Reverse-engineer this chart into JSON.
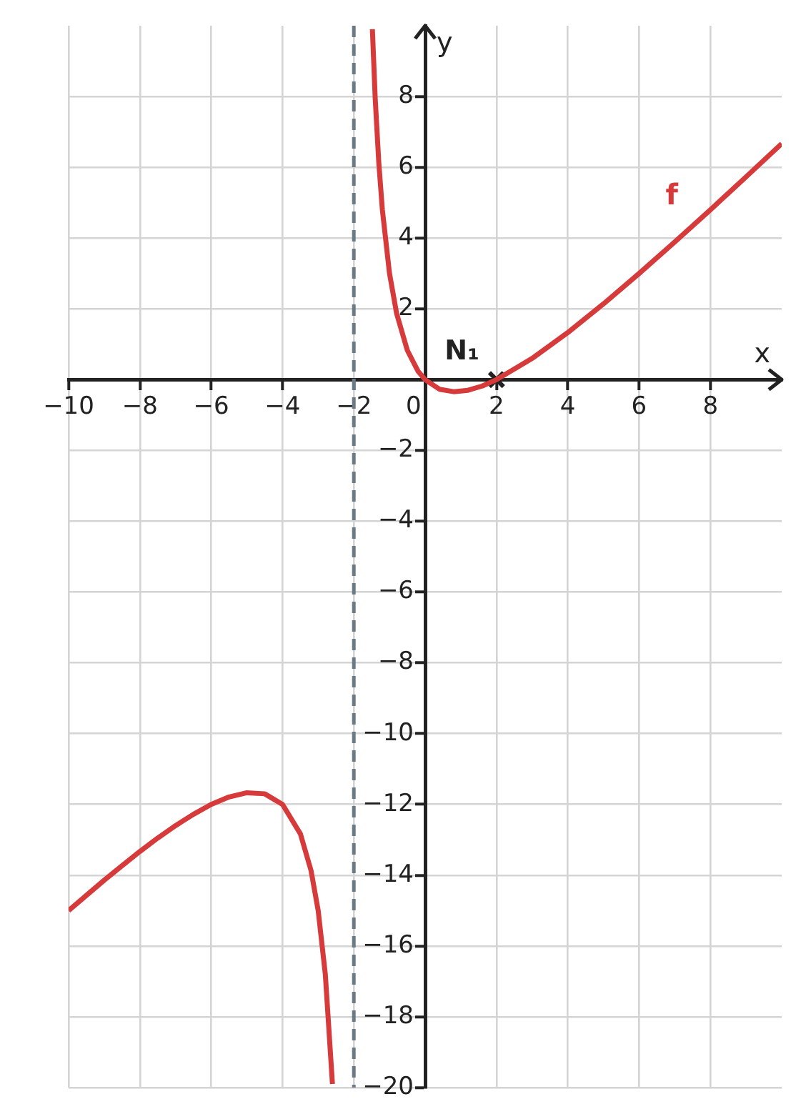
{
  "chart_data": {
    "type": "line",
    "xlabel": "x",
    "ylabel": "y",
    "xlim": [
      -10,
      10
    ],
    "ylim": [
      -20,
      10
    ],
    "xticks": [
      {
        "value": -10,
        "label": "−10"
      },
      {
        "value": -8,
        "label": "−8"
      },
      {
        "value": -6,
        "label": "−6"
      },
      {
        "value": -4,
        "label": "−4"
      },
      {
        "value": -2,
        "label": "−2"
      },
      0,
      2,
      4,
      6,
      8
    ],
    "yticks": [
      {
        "value": -20,
        "label": "−20"
      },
      {
        "value": -18,
        "label": "−18"
      },
      {
        "value": -16,
        "label": "−16"
      },
      {
        "value": -14,
        "label": "−14"
      },
      {
        "value": -12,
        "label": "−12"
      },
      {
        "value": -10,
        "label": "−10"
      },
      {
        "value": -8,
        "label": "−8"
      },
      {
        "value": -6,
        "label": "−6"
      },
      {
        "value": -4,
        "label": "−4"
      },
      {
        "value": -2,
        "label": "−2"
      },
      {
        "value": 0,
        "label": null
      },
      2,
      4,
      6,
      8
    ],
    "grid": true,
    "legend": false,
    "marker": "none",
    "series": [
      {
        "name": "f",
        "color": "#d63a3a",
        "x": [
          -10,
          -9.5,
          -9,
          -8.5,
          -8,
          -7.5,
          -7,
          -6.5,
          -6,
          -5.5,
          -5,
          -4.5,
          -4,
          -3.5,
          -3.2,
          -3,
          -2.8,
          -2.6,
          -2,
          -1.48,
          -1.4,
          -1.3,
          -1.2,
          -1,
          -0.8,
          -0.5,
          -0.2,
          0,
          0.4,
          0.8,
          1.2,
          1.6,
          2,
          3,
          4,
          5,
          6,
          7,
          8,
          9,
          10
        ],
        "values": [
          -15,
          -14.57,
          -14.14,
          -13.73,
          -13.33,
          -12.95,
          -12.6,
          -12.28,
          -12,
          -11.79,
          -11.67,
          -11.7,
          -12,
          -12.83,
          -13.87,
          -15,
          -16.8,
          -19.9,
          null,
          9.9,
          7.93,
          6.13,
          4.8,
          3,
          1.87,
          0.83,
          0.24,
          0,
          -0.27,
          -0.34,
          -0.3,
          -0.18,
          0,
          0.6,
          1.33,
          2.14,
          3,
          3.89,
          4.8,
          5.73,
          6.67
        ]
      },
      {
        "type": "scatter",
        "color": "#222222",
        "marker": "cross",
        "x": [
          2
        ],
        "values": [
          0
        ]
      }
    ],
    "ref_lines": [
      {
        "axis": "x",
        "value": -2,
        "color": "#6c7a86",
        "line_style": "dashed"
      }
    ],
    "annotations": [
      {
        "text": "N₁",
        "x": 2,
        "y": 0
      }
    ]
  }
}
